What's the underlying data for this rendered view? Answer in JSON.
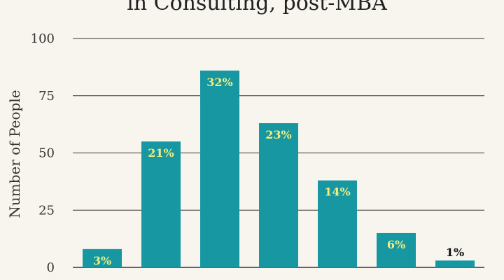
{
  "chart_data": {
    "type": "bar",
    "title": "in Consulting, post-MBA",
    "ylabel": "Number of People",
    "xlabel": "",
    "ylim": [
      0,
      100
    ],
    "yticks": [
      0,
      25,
      50,
      75,
      100
    ],
    "grid": true,
    "categories": [
      "",
      "",
      "",
      "",
      "",
      "",
      ""
    ],
    "values": [
      8,
      55,
      86,
      63,
      38,
      15,
      3
    ],
    "data_labels": [
      "3%",
      "21%",
      "32%",
      "23%",
      "14%",
      "6%",
      "1%"
    ],
    "colors": {
      "bar": "#1797a2",
      "label_on_bar": "#f3ec7a",
      "label_above_bar": "#111111",
      "grid": "#333333",
      "background": "#f7f5ee"
    }
  }
}
